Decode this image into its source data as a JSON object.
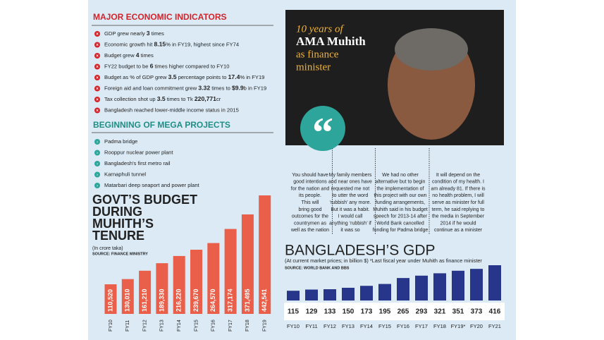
{
  "indicators": {
    "title": "MAJOR ECONOMIC INDICATORS",
    "items": [
      [
        "GDP grew nearly ",
        "3",
        " times"
      ],
      [
        "Economic growth hit ",
        "8.15",
        "% in FY19, highest since FY74"
      ],
      [
        "Budget grew ",
        "4",
        " times"
      ],
      [
        "FY22 budget to be ",
        "6",
        " times higher compared to FY10"
      ],
      [
        "Budget as % of GDP grew ",
        "3.5",
        " percentage points to ",
        "17.4",
        "% in FY19"
      ],
      [
        "Foreign aid and loan commitment grew ",
        "3.32",
        " times to ",
        "$9.9",
        "b in FY19"
      ],
      [
        "Tax collection shot up ",
        "3.5",
        " times to Tk ",
        "220,771",
        "cr"
      ],
      [
        "Bangladesh reached lower-middle income status in 2015"
      ]
    ]
  },
  "projects": {
    "title": "BEGINNING OF MEGA PROJECTS",
    "items": [
      "Padma bridge",
      "Rooppur nuclear power plant",
      "Bangladesh's first metro rail",
      "Karnaphuli tunnel",
      "Matarbari deep seaport and power plant"
    ]
  },
  "feature": {
    "title": [
      "10 years of",
      "AMA Muhith",
      "as finance",
      "minister"
    ],
    "quotes": [
      [
        "You should have",
        "good intentions",
        "for the nation and",
        "its people.",
        "This will",
        "bring good",
        "outcomes for the",
        "countrymen as",
        "well as the nation"
      ],
      [
        "My family members",
        "and near ones have",
        "requested me not",
        "to utter the word",
        "‘rubbish’ any more.",
        "But it was a habit.",
        "I would call",
        "anything ‘rubbish’ if",
        "it was so"
      ],
      [
        "We had no other",
        "alternative but to begin",
        "the implementation of",
        "this project with our own",
        "funding arrangements,",
        "Muhith said in his budget",
        "speech for 2013-14 after",
        "World Bank cancelled",
        "funding for Padma bridge"
      ],
      [
        "It will depend on the",
        "condition of my health. I",
        "am already 81. If there is",
        "no health problem, I will",
        "serve as minister for full",
        "term, he said replying to",
        "the media in September",
        "2014 if he would",
        "continue as a minister"
      ]
    ]
  },
  "chart_data": [
    {
      "type": "bar",
      "title": [
        "GOVT’S BUDGET",
        "DURING",
        "MUHITH’S",
        "TENURE"
      ],
      "subtitle": "(In crore taka)",
      "source": "SOURCE: FINANCE MINISTRY",
      "categories": [
        "FY10",
        "FY11",
        "FY12",
        "FY13",
        "FY14",
        "FY15",
        "FY16",
        "FY17",
        "FY18",
        "FY19"
      ],
      "values": [
        110520,
        130010,
        161210,
        189330,
        216220,
        239670,
        264570,
        317174,
        371495,
        442541
      ],
      "value_labels": [
        "110,520",
        "130,010",
        "161,210",
        "189,330",
        "216,220",
        "239,670",
        "264,570",
        "317,174",
        "371,495",
        "442,541"
      ],
      "color": "#ea5f4a"
    },
    {
      "type": "bar",
      "title": "BANGLADESH’S GDP",
      "subtitle": "(At current market prices; in billion $) *Last fiscal year under Muhith as finance minister",
      "source": "SOURCE: WORLD BANK AND BBS",
      "categories": [
        "FY10",
        "FY11",
        "FY12",
        "FY13",
        "FY14",
        "FY15",
        "FY16",
        "FY17",
        "FY18",
        "FY19*",
        "FY20",
        "FY21"
      ],
      "values": [
        115,
        129,
        133,
        150,
        173,
        195,
        265,
        293,
        321,
        351,
        373,
        416
      ],
      "color": "#27368a"
    }
  ]
}
